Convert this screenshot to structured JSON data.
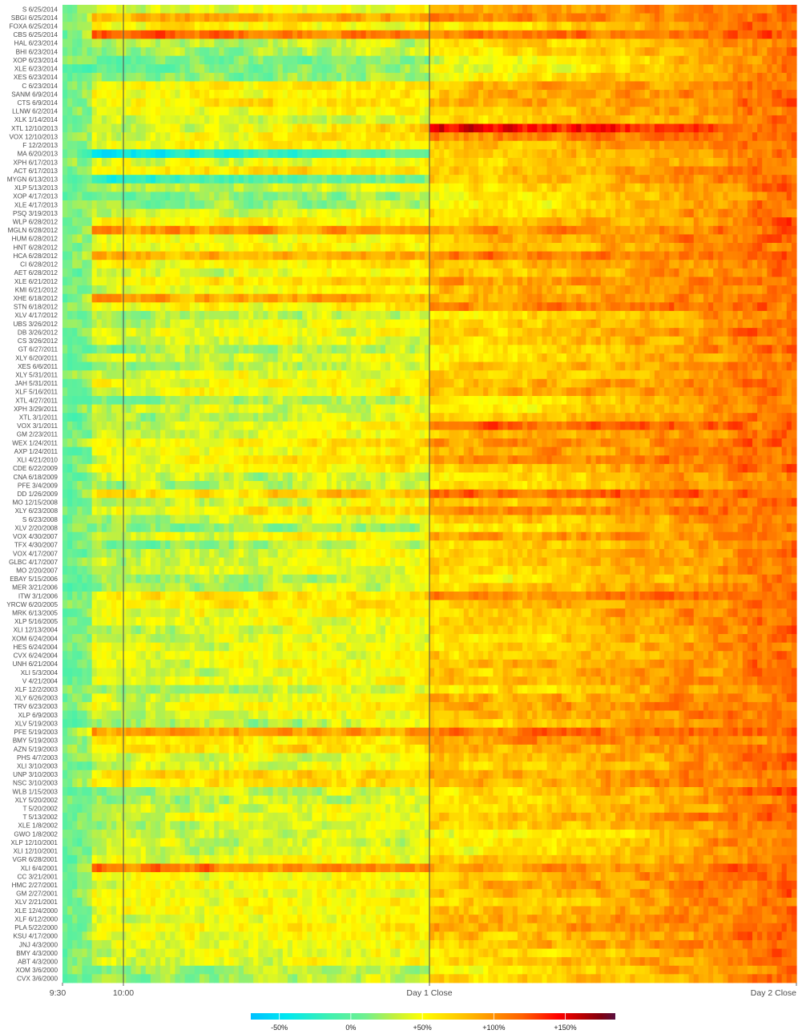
{
  "chart_data": {
    "type": "heatmap",
    "title": "",
    "xlabel": "",
    "ylabel": "",
    "x_ticks": [
      {
        "label": "9:30",
        "pos": 0.0
      },
      {
        "label": "10:00",
        "pos": 0.083
      },
      {
        "label": "Day 1 Close",
        "pos": 0.5
      },
      {
        "label": "Day 2 Close",
        "pos": 1.0
      }
    ],
    "vertical_lines_at": [
      0.083,
      0.5
    ],
    "color_scale": {
      "type": "continuous",
      "domain": [
        -0.7,
        1.85
      ],
      "stops": [
        {
          "v": -0.7,
          "c": "#00c0ff"
        },
        {
          "v": -0.45,
          "c": "#00e8f0"
        },
        {
          "v": -0.15,
          "c": "#40f0b0"
        },
        {
          "v": 0.1,
          "c": "#70f090"
        },
        {
          "v": 0.3,
          "c": "#c0f040"
        },
        {
          "v": 0.5,
          "c": "#ffff00"
        },
        {
          "v": 0.8,
          "c": "#ffc000"
        },
        {
          "v": 1.0,
          "c": "#ff9000"
        },
        {
          "v": 1.2,
          "c": "#ff6000"
        },
        {
          "v": 1.45,
          "c": "#ff0000"
        },
        {
          "v": 1.6,
          "c": "#c00000"
        },
        {
          "v": 1.75,
          "c": "#800010"
        },
        {
          "v": 1.85,
          "c": "#5a1040"
        }
      ],
      "legend_ticks": [
        {
          "label": "-50%",
          "v": -0.5
        },
        {
          "label": "0%",
          "v": 0.0
        },
        {
          "label": "+50%",
          "v": 0.5
        },
        {
          "label": "+100%",
          "v": 1.0
        },
        {
          "label": "+150%",
          "v": 1.5
        }
      ]
    },
    "rows": [
      {
        "label": "S 6/25/2014",
        "level": 1.0,
        "early": 0.3
      },
      {
        "label": "SBGI 6/25/2014",
        "level": 1.15,
        "early": 0.9
      },
      {
        "label": "FOXA 6/25/2014",
        "level": 0.75,
        "early": 0.55
      },
      {
        "label": "CBS 6/25/2014",
        "level": 1.25,
        "early": 1.2
      },
      {
        "label": "HAL 6/23/2014",
        "level": 0.7,
        "early": 0.2
      },
      {
        "label": "BHI 6/23/2014",
        "level": 0.7,
        "early": 0.2
      },
      {
        "label": "XOP 6/23/2014",
        "level": 0.45,
        "early": 0.0
      },
      {
        "label": "XLE 6/23/2014",
        "level": 0.5,
        "early": 0.0
      },
      {
        "label": "XES 6/23/2014",
        "level": 0.6,
        "early": 0.1
      },
      {
        "label": "C 6/23/2014",
        "level": 0.95,
        "early": 0.5
      },
      {
        "label": "SANM 6/9/2014",
        "level": 0.95,
        "early": 0.5
      },
      {
        "label": "CTS 6/9/2014",
        "level": 1.0,
        "early": 0.55
      },
      {
        "label": "LLNW 6/2/2014",
        "level": 0.85,
        "early": 0.4
      },
      {
        "label": "XLK 1/14/2014",
        "level": 0.75,
        "early": 0.3
      },
      {
        "label": "XTL 12/10/2013",
        "level": 1.7,
        "early": 0.2
      },
      {
        "label": "VOX 12/10/2013",
        "level": 1.2,
        "early": 0.4
      },
      {
        "label": "F 12/2/2013",
        "level": 0.9,
        "early": 0.4
      },
      {
        "label": "MA 6/20/2013",
        "level": 0.8,
        "early": -0.55
      },
      {
        "label": "XPH 6/17/2013",
        "level": 0.75,
        "early": 0.35
      },
      {
        "label": "ACT 6/17/2013",
        "level": 0.9,
        "early": 0.6
      },
      {
        "label": "MYGN 6/13/2013",
        "level": 0.85,
        "early": -0.3
      },
      {
        "label": "XLP 5/13/2013",
        "level": 0.7,
        "early": 0.3
      },
      {
        "label": "XOP 4/17/2013",
        "level": 0.6,
        "early": 0.05
      },
      {
        "label": "XLE 4/17/2013",
        "level": 0.6,
        "early": 0.1
      },
      {
        "label": "PSQ 3/19/2013",
        "level": 0.75,
        "early": 0.3
      },
      {
        "label": "WLP 6/28/2012",
        "level": 0.9,
        "early": 0.55
      },
      {
        "label": "MGLN 6/28/2012",
        "level": 1.1,
        "early": 1.0
      },
      {
        "label": "HUM 6/28/2012",
        "level": 0.95,
        "early": 0.45
      },
      {
        "label": "HNT 6/28/2012",
        "level": 0.9,
        "early": 0.45
      },
      {
        "label": "HCA 6/28/2012",
        "level": 1.25,
        "early": 0.85
      },
      {
        "label": "CI 6/28/2012",
        "level": 0.9,
        "early": 0.5
      },
      {
        "label": "AET 6/28/2012",
        "level": 0.85,
        "early": 0.35
      },
      {
        "label": "XLE 6/21/2012",
        "level": 1.05,
        "early": 0.55
      },
      {
        "label": "KMI 6/21/2012",
        "level": 0.95,
        "early": 0.4
      },
      {
        "label": "XHE 6/18/2012",
        "level": 1.0,
        "early": 0.95
      },
      {
        "label": "STN 6/18/2012",
        "level": 1.2,
        "early": 0.4
      },
      {
        "label": "XLV 4/17/2012",
        "level": 0.7,
        "early": 0.2
      },
      {
        "label": "UBS 3/26/2012",
        "level": 0.8,
        "early": 0.35
      },
      {
        "label": "DB 3/26/2012",
        "level": 0.8,
        "early": 0.35
      },
      {
        "label": "CS 3/26/2012",
        "level": 0.8,
        "early": 0.35
      },
      {
        "label": "GT 6/27/2011",
        "level": 0.7,
        "early": 0.15
      },
      {
        "label": "XLY 6/20/2011",
        "level": 0.7,
        "early": 0.3
      },
      {
        "label": "XES 6/6/2011",
        "level": 0.8,
        "early": 0.15
      },
      {
        "label": "XLY 5/31/2011",
        "level": 0.85,
        "early": 0.4
      },
      {
        "label": "JAH 5/31/2011",
        "level": 0.9,
        "early": 0.45
      },
      {
        "label": "XLF 5/16/2011",
        "level": 1.0,
        "early": 0.45
      },
      {
        "label": "XTL 4/27/2011",
        "level": 0.65,
        "early": 0.1
      },
      {
        "label": "XPH 3/29/2011",
        "level": 0.7,
        "early": 0.3
      },
      {
        "label": "XTL 3/1/2011",
        "level": 0.8,
        "early": 0.2
      },
      {
        "label": "VOX 3/1/2011",
        "level": 1.3,
        "early": 0.25
      },
      {
        "label": "GM 2/23/2011",
        "level": 0.9,
        "early": 0.3
      },
      {
        "label": "WEX 1/24/2011",
        "level": 1.1,
        "early": 0.45
      },
      {
        "label": "AXP 1/24/2011",
        "level": 1.0,
        "early": 0.45
      },
      {
        "label": "XLI 4/21/2010",
        "level": 1.15,
        "early": 0.45
      },
      {
        "label": "CDE 6/22/2009",
        "level": 0.85,
        "early": 0.45
      },
      {
        "label": "CNA 6/18/2009",
        "level": 0.7,
        "early": 0.3
      },
      {
        "label": "PFE 3/4/2009",
        "level": 0.75,
        "early": 0.25
      },
      {
        "label": "DD 1/26/2009",
        "level": 1.35,
        "early": 0.55
      },
      {
        "label": "MO 12/15/2008",
        "level": 0.9,
        "early": 0.25
      },
      {
        "label": "XLY 6/23/2008",
        "level": 1.15,
        "early": 0.45
      },
      {
        "label": "S 6/23/2008",
        "level": 0.85,
        "early": 0.25
      },
      {
        "label": "XLV 2/20/2008",
        "level": 0.6,
        "early": 0.15
      },
      {
        "label": "VOX 4/30/2007",
        "level": 1.05,
        "early": 0.35
      },
      {
        "label": "TFX 4/30/2007",
        "level": 0.75,
        "early": 0.1
      },
      {
        "label": "VOX 4/17/2007",
        "level": 0.85,
        "early": 0.3
      },
      {
        "label": "GLBC 4/17/2007",
        "level": 0.8,
        "early": 0.3
      },
      {
        "label": "MO 2/20/2007",
        "level": 0.8,
        "early": 0.35
      },
      {
        "label": "EBAY 5/15/2006",
        "level": 0.65,
        "early": 0.2
      },
      {
        "label": "MER 3/21/2006",
        "level": 0.8,
        "early": 0.2
      },
      {
        "label": "ITW 3/1/2006",
        "level": 1.2,
        "early": 0.5
      },
      {
        "label": "YRCW 6/20/2005",
        "level": 0.95,
        "early": 0.5
      },
      {
        "label": "MRK 6/13/2005",
        "level": 0.85,
        "early": 0.45
      },
      {
        "label": "XLP 5/16/2005",
        "level": 0.8,
        "early": 0.4
      },
      {
        "label": "XLI 12/13/2004",
        "level": 0.8,
        "early": 0.3
      },
      {
        "label": "XOM 6/24/2004",
        "level": 0.75,
        "early": 0.35
      },
      {
        "label": "HES 6/24/2004",
        "level": 0.8,
        "early": 0.4
      },
      {
        "label": "CVX 6/24/2004",
        "level": 0.8,
        "early": 0.4
      },
      {
        "label": "UNH 6/21/2004",
        "level": 0.95,
        "early": 0.35
      },
      {
        "label": "XLI 5/3/2004",
        "level": 0.85,
        "early": 0.3
      },
      {
        "label": "V 4/21/2004",
        "level": 0.95,
        "early": 0.45
      },
      {
        "label": "XLF 12/2/2003",
        "level": 0.75,
        "early": 0.15
      },
      {
        "label": "XLY 6/26/2003",
        "level": 0.95,
        "early": 0.35
      },
      {
        "label": "TRV 6/23/2003",
        "level": 1.05,
        "early": 0.4
      },
      {
        "label": "XLP 6/9/2003",
        "level": 0.9,
        "early": 0.3
      },
      {
        "label": "XLV 5/19/2003",
        "level": 0.8,
        "early": 0.2
      },
      {
        "label": "PFE 5/19/2003",
        "level": 1.35,
        "early": 0.9
      },
      {
        "label": "BMY 5/19/2003",
        "level": 1.05,
        "early": 0.55
      },
      {
        "label": "AZN 5/19/2003",
        "level": 0.95,
        "early": 0.6
      },
      {
        "label": "PHS 4/7/2003",
        "level": 0.85,
        "early": 0.35
      },
      {
        "label": "XLI 3/10/2003",
        "level": 0.8,
        "early": 0.35
      },
      {
        "label": "UNP 3/10/2003",
        "level": 1.0,
        "early": 0.65
      },
      {
        "label": "NSC 3/10/2003",
        "level": 1.0,
        "early": 0.6
      },
      {
        "label": "WLB 1/15/2003",
        "level": 0.75,
        "early": 0.2
      },
      {
        "label": "XLY 5/20/2002",
        "level": 0.7,
        "early": 0.2
      },
      {
        "label": "T 5/20/2002",
        "level": 0.75,
        "early": 0.35
      },
      {
        "label": "T 5/13/2002",
        "level": 0.9,
        "early": 0.4
      },
      {
        "label": "XLE 1/8/2002",
        "level": 0.8,
        "early": 0.25
      },
      {
        "label": "GWO 1/8/2002",
        "level": 0.55,
        "early": 0.35
      },
      {
        "label": "XLP 12/10/2001",
        "level": 0.6,
        "early": 0.3
      },
      {
        "label": "XLI 12/10/2001",
        "level": 0.6,
        "early": 0.35
      },
      {
        "label": "VGR 6/28/2001",
        "level": 0.85,
        "early": 0.4
      },
      {
        "label": "XLI 6/4/2001",
        "level": 1.1,
        "early": 1.1
      },
      {
        "label": "CC 3/21/2001",
        "level": 0.9,
        "early": 0.45
      },
      {
        "label": "HMC 2/27/2001",
        "level": 1.0,
        "early": 0.4
      },
      {
        "label": "GM 2/27/2001",
        "level": 0.9,
        "early": 0.4
      },
      {
        "label": "XLV 2/21/2001",
        "level": 0.8,
        "early": 0.5
      },
      {
        "label": "XLE 12/4/2000",
        "level": 0.9,
        "early": 0.45
      },
      {
        "label": "XLF 6/12/2000",
        "level": 1.0,
        "early": 0.4
      },
      {
        "label": "PLA 5/22/2000",
        "level": 1.05,
        "early": 0.45
      },
      {
        "label": "KSU 4/17/2000",
        "level": 0.9,
        "early": 0.4
      },
      {
        "label": "JNJ 4/3/2000",
        "level": 0.85,
        "early": 0.4
      },
      {
        "label": "BMY 4/3/2000",
        "level": 0.75,
        "early": 0.35
      },
      {
        "label": "ABT 4/3/2000",
        "level": 0.8,
        "early": 0.35
      },
      {
        "label": "XOM 3/6/2000",
        "level": 0.7,
        "early": 0.2
      },
      {
        "label": "CVX 3/6/2000",
        "level": 0.75,
        "early": 0.15
      }
    ]
  }
}
